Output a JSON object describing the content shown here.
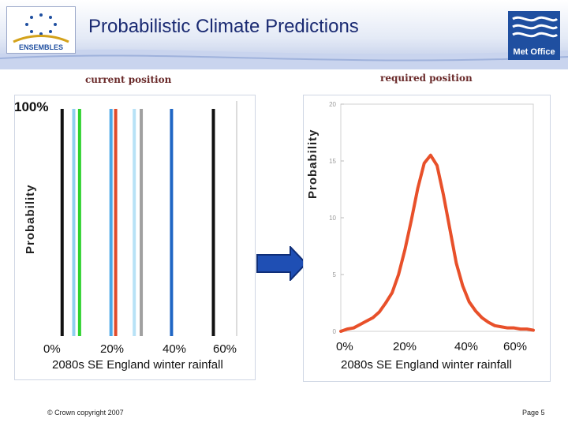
{
  "header": {
    "title": "Probabilistic Climate Predictions",
    "left_logo_text": "ENSEMBLES",
    "right_logo_text": "Met Office"
  },
  "labels": {
    "current": "current position",
    "required": "required position"
  },
  "colors": {
    "title": "#1a2a72",
    "curve": "#e8502a",
    "arrow": "#1f4fb4"
  },
  "chart_data": [
    {
      "type": "line",
      "panel": "left",
      "top_label": "100%",
      "ylabel": "Probability",
      "xlabel": "2080s SE England winter rainfall",
      "x_ticks": [
        "0%",
        "20%",
        "40%",
        "60%"
      ],
      "xlim": [
        -10,
        70
      ],
      "series": [
        {
          "x": -5.0,
          "color": "#111111"
        },
        {
          "x": 0.0,
          "color": "#8fd0f0"
        },
        {
          "x": 2.5,
          "color": "#2fd22f"
        },
        {
          "x": 16.0,
          "color": "#4aa7e8"
        },
        {
          "x": 18.0,
          "color": "#e04a2a"
        },
        {
          "x": 26.0,
          "color": "#b8e2f6"
        },
        {
          "x": 29.0,
          "color": "#a0a0a0"
        },
        {
          "x": 42.0,
          "color": "#1f66c4"
        },
        {
          "x": 60.0,
          "color": "#111111"
        }
      ]
    },
    {
      "type": "line",
      "panel": "right",
      "ylabel": "Probability",
      "xlabel": "2080s SE England winter rainfall",
      "x_ticks": [
        "0%",
        "20%",
        "40%",
        "60%"
      ],
      "y_ticks": [
        "0",
        "5",
        "10",
        "15",
        "20"
      ],
      "xlim": [
        0,
        60
      ],
      "ylim": [
        0,
        20
      ],
      "x": [
        0,
        2,
        4,
        6,
        8,
        10,
        12,
        14,
        16,
        18,
        20,
        22,
        24,
        26,
        28,
        30,
        32,
        34,
        36,
        38,
        40,
        42,
        44,
        46,
        48,
        50,
        52,
        54,
        56,
        58,
        60
      ],
      "values": [
        0.0,
        0.2,
        0.3,
        0.6,
        0.9,
        1.2,
        1.7,
        2.5,
        3.4,
        5.0,
        7.2,
        9.8,
        12.6,
        14.8,
        15.5,
        14.6,
        12.0,
        9.0,
        6.0,
        4.0,
        2.6,
        1.8,
        1.2,
        0.8,
        0.5,
        0.4,
        0.3,
        0.3,
        0.2,
        0.2,
        0.1
      ]
    }
  ],
  "footer": {
    "copyright": "© Crown copyright 2007",
    "page": "Page 5"
  }
}
